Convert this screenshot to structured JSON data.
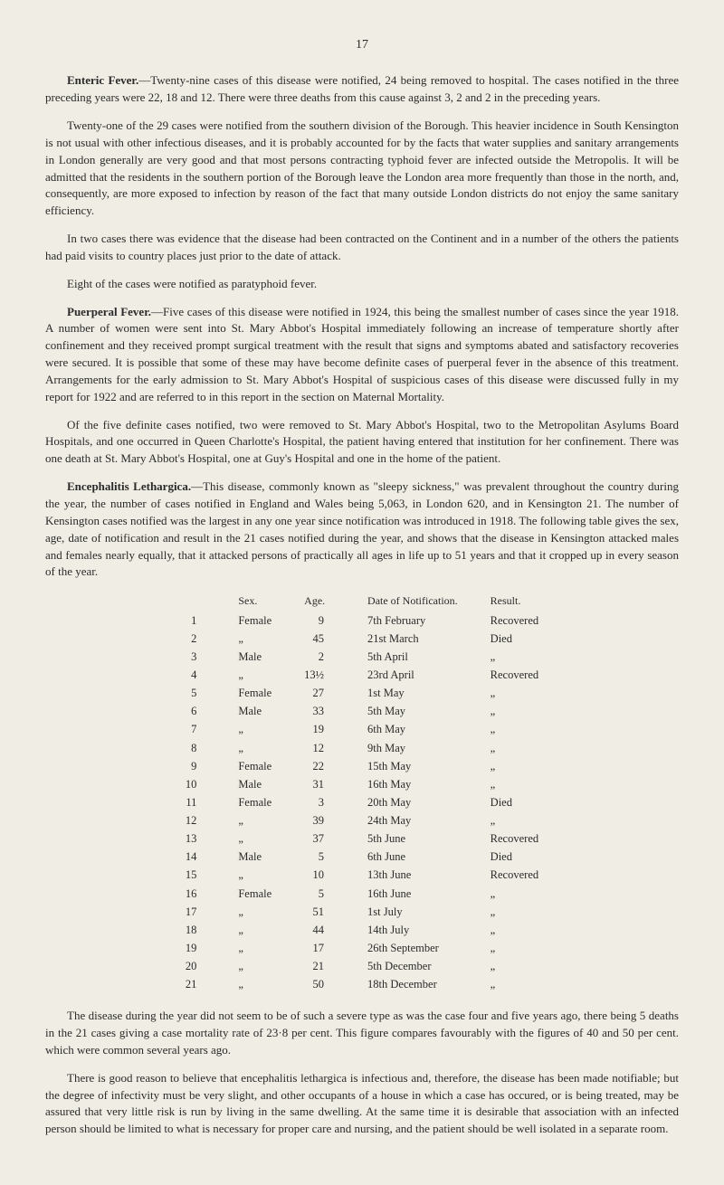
{
  "page_number": "17",
  "sections": {
    "enteric": {
      "title": "Enteric Fever.",
      "p1": "—Twenty-nine cases of this disease were notified, 24 being removed to hospital. The cases notified in the three preceding years were 22, 18 and 12. There were three deaths from this cause against 3, 2 and 2 in the preceding years.",
      "p2": "Twenty-one of the 29 cases were notified from the southern division of the Borough. This heavier incidence in South Kensington is not usual with other infectious diseases, and it is probably accounted for by the facts that water supplies and sanitary arrangements in London generally are very good and that most persons contracting typhoid fever are infected outside the Metropolis. It will be admitted that the residents in the southern portion of the Borough leave the London area more frequently than those in the north, and, consequently, are more exposed to infection by reason of the fact that many outside London districts do not enjoy the same sanitary efficiency.",
      "p3": "In two cases there was evidence that the disease had been contracted on the Continent and in a number of the others the patients had paid visits to country places just prior to the date of attack.",
      "p4": "Eight of the cases were notified as paratyphoid fever."
    },
    "puerperal": {
      "title": "Puerperal Fever.",
      "p1": "—Five cases of this disease were notified in 1924, this being the smallest number of cases since the year 1918. A number of women were sent into St. Mary Abbot's Hospital immediately following an increase of temperature shortly after confinement and they received prompt surgical treatment with the result that signs and symptoms abated and satisfactory recoveries were secured. It is possible that some of these may have become definite cases of puerperal fever in the absence of this treatment. Arrangements for the early admission to St. Mary Abbot's Hospital of suspicious cases of this disease were discussed fully in my report for 1922 and are referred to in this report in the section on Maternal Mortality.",
      "p2": "Of the five definite cases notified, two were removed to St. Mary Abbot's Hospital, two to the Metropolitan Asylums Board Hospitals, and one occurred in Queen Charlotte's Hospital, the patient having entered that institution for her confinement. There was one death at St. Mary Abbot's Hospital, one at Guy's Hospital and one in the home of the patient."
    },
    "encephalitis": {
      "title": "Encephalitis Lethargica.",
      "p1": "—This disease, commonly known as \"sleepy sickness,\" was prevalent throughout the country during the year, the number of cases notified in England and Wales being 5,063, in London 620, and in Kensington 21. The number of Kensington cases notified was the largest in any one year since notification was introduced in 1918. The following table gives the sex, age, date of notification and result in the 21 cases notified during the year, and shows that the disease in Kensington attacked males and females nearly equally, that it attacked persons of practically all ages in life up to 51 years and that it cropped up in every season of the year.",
      "p2": "The disease during the year did not seem to be of such a severe type as was the case four and five years ago, there being 5 deaths in the 21 cases giving a case mortality rate of 23·8 per cent. This figure compares favourably with the figures of 40 and 50 per cent. which were common several years ago.",
      "p3": "There is good reason to believe that encephalitis lethargica is infectious and, therefore, the disease has been made notifiable; but the degree of infectivity must be very slight, and other occupants of a house in which a case has occured, or is being treated, may be assured that very little risk is run by living in the same dwelling. At the same time it is desirable that association with an infected person should be limited to what is necessary for proper care and nursing, and the patient should be well isolated in a separate room."
    }
  },
  "table": {
    "headers": [
      "",
      "Sex.",
      "Age.",
      "Date of Notification.",
      "Result."
    ],
    "rows": [
      [
        "1",
        "Female",
        "9",
        "7th February",
        "Recovered"
      ],
      [
        "2",
        "„",
        "45",
        "21st March",
        "Died"
      ],
      [
        "3",
        "Male",
        "2",
        "5th April",
        "„"
      ],
      [
        "4",
        "„",
        "13½",
        "23rd April",
        "Recovered"
      ],
      [
        "5",
        "Female",
        "27",
        "1st May",
        "„"
      ],
      [
        "6",
        "Male",
        "33",
        "5th May",
        "„"
      ],
      [
        "7",
        "„",
        "19",
        "6th May",
        "„"
      ],
      [
        "8",
        "„",
        "12",
        "9th May",
        "„"
      ],
      [
        "9",
        "Female",
        "22",
        "15th May",
        "„"
      ],
      [
        "10",
        "Male",
        "31",
        "16th May",
        "„"
      ],
      [
        "11",
        "Female",
        "3",
        "20th May",
        "Died"
      ],
      [
        "12",
        "„",
        "39",
        "24th May",
        "„"
      ],
      [
        "13",
        "„",
        "37",
        "5th June",
        "Recovered"
      ],
      [
        "14",
        "Male",
        "5",
        "6th June",
        "Died"
      ],
      [
        "15",
        "„",
        "10",
        "13th June",
        "Recovered"
      ],
      [
        "16",
        "Female",
        "5",
        "16th June",
        "„"
      ],
      [
        "17",
        "„",
        "51",
        "1st July",
        "„"
      ],
      [
        "18",
        "„",
        "44",
        "14th July",
        "„"
      ],
      [
        "19",
        "„",
        "17",
        "26th September",
        "„"
      ],
      [
        "20",
        "„",
        "21",
        "5th December",
        "„"
      ],
      [
        "21",
        "„",
        "50",
        "18th December",
        "„"
      ]
    ]
  }
}
